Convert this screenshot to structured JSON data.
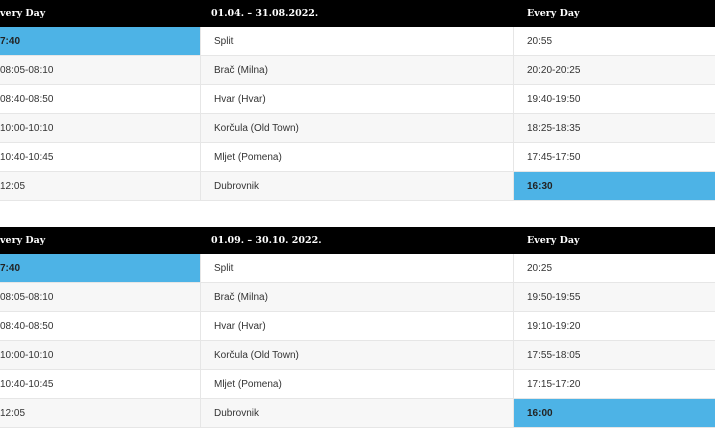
{
  "tables": [
    {
      "header": [
        "very Day",
        "01.04. – 31.08.2022.",
        "Every Day"
      ],
      "rows": [
        [
          "7:40",
          "Split",
          "20:55"
        ],
        [
          "08:05-08:10",
          "Brač (Milna)",
          "20:20-20:25"
        ],
        [
          "08:40-08:50",
          "Hvar (Hvar)",
          "19:40-19:50"
        ],
        [
          "10:00-10:10",
          "Korčula (Old Town)",
          "18:25-18:35"
        ],
        [
          "10:40-10:45",
          "Mljet (Pomena)",
          "17:45-17:50"
        ],
        [
          "12:05",
          "Dubrovnik",
          "16:30"
        ]
      ]
    },
    {
      "header": [
        "very Day",
        "01.09. – 30.10. 2022.",
        "Every Day"
      ],
      "rows": [
        [
          "7:40",
          "Split",
          "20:25"
        ],
        [
          "08:05-08:10",
          "Brač (Milna)",
          "19:50-19:55"
        ],
        [
          "08:40-08:50",
          "Hvar (Hvar)",
          "19:10-19:20"
        ],
        [
          "10:00-10:10",
          "Korčula (Old Town)",
          "17:55-18:05"
        ],
        [
          "10:40-10:45",
          "Mljet (Pomena)",
          "17:15-17:20"
        ],
        [
          "12:05",
          "Dubrovnik",
          "16:00"
        ]
      ]
    }
  ]
}
